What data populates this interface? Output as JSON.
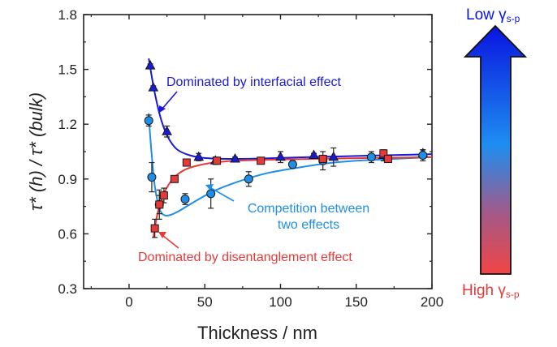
{
  "colors": {
    "interfacial": "#1a1ad6",
    "competition": "#1e8ee8",
    "disentanglement": "#e63a3a",
    "arrow_top": "#0a14e0",
    "arrow_bottom": "#f24545",
    "axis": "#222222"
  },
  "chart_data": {
    "type": "scatter",
    "title": "",
    "xlabel": "Thickness / nm",
    "ylabel": "τ* (h) / τ* (bulk)",
    "xlim": [
      -30,
      200
    ],
    "ylim": [
      0.3,
      1.8
    ],
    "xticks": [
      0,
      50,
      100,
      150,
      200
    ],
    "yticks": [
      0.3,
      0.6,
      0.9,
      1.2,
      1.5,
      1.8
    ],
    "xtick_labels": [
      "0",
      "50",
      "100",
      "150",
      "200"
    ],
    "ytick_labels": [
      "0.3",
      "0.6",
      "0.9",
      "1.2",
      "1.5",
      "1.8"
    ],
    "grid": false,
    "series": [
      {
        "key": "interfacial",
        "marker": "triangle",
        "x": [
          14,
          16,
          25,
          46,
          57,
          70,
          100,
          122,
          135,
          168,
          194
        ],
        "y": [
          1.52,
          1.4,
          1.16,
          1.02,
          1.0,
          1.01,
          1.02,
          1.03,
          1.02,
          1.03,
          1.04
        ],
        "err": [
          0.01,
          0.01,
          0.03,
          0.02,
          0.02,
          0.01,
          0.03,
          0.01,
          0.05,
          0.03,
          0.02
        ],
        "fit_x": [
          13,
          15,
          17,
          20,
          23,
          27,
          32,
          40,
          50,
          65,
          85,
          110,
          140,
          170,
          200
        ],
        "fit_y": [
          1.56,
          1.46,
          1.37,
          1.26,
          1.18,
          1.11,
          1.06,
          1.03,
          1.015,
          1.01,
          1.012,
          1.018,
          1.024,
          1.03,
          1.036
        ]
      },
      {
        "key": "competition",
        "marker": "circle",
        "x": [
          13,
          15,
          20,
          37,
          54,
          79,
          108,
          128,
          160,
          194
        ],
        "y": [
          1.22,
          0.91,
          0.76,
          0.79,
          0.82,
          0.9,
          0.98,
          1.0,
          1.02,
          1.03
        ],
        "err": [
          0.03,
          0.08,
          0.08,
          0.03,
          0.08,
          0.04,
          0.02,
          0.05,
          0.03,
          0.03
        ],
        "fit_x": [
          13,
          14,
          15.5,
          17,
          19,
          21,
          24,
          28,
          34,
          42,
          55,
          70,
          90,
          110,
          130,
          150,
          175,
          200
        ],
        "fit_y": [
          1.26,
          1.13,
          0.98,
          0.86,
          0.77,
          0.72,
          0.7,
          0.705,
          0.73,
          0.77,
          0.83,
          0.88,
          0.93,
          0.96,
          0.985,
          1.0,
          1.01,
          1.02
        ]
      },
      {
        "key": "disentanglement",
        "marker": "square",
        "x": [
          17,
          20,
          23,
          30,
          38,
          58,
          87,
          128,
          168,
          171
        ],
        "y": [
          0.63,
          0.76,
          0.81,
          0.9,
          0.99,
          1.0,
          1.0,
          1.01,
          1.04,
          1.01
        ],
        "err": [
          0.05,
          0.05,
          0.04,
          0.01,
          0.01,
          0.01,
          0.01,
          0.02,
          0.01,
          0.01
        ],
        "fit_x": [
          16,
          18,
          20,
          23,
          27,
          32,
          38,
          46,
          56,
          70,
          90,
          120,
          160,
          200
        ],
        "fit_y": [
          0.58,
          0.68,
          0.75,
          0.82,
          0.88,
          0.925,
          0.955,
          0.975,
          0.99,
          1.0,
          1.005,
          1.01,
          1.015,
          1.02
        ]
      }
    ],
    "annotations": [
      "Dominated by interfacial effect",
      "Competition between\ntwo effects",
      "Dominated by disentanglement effect"
    ],
    "colorbar": {
      "top_label": "Low γ",
      "top_sub": "s-p",
      "bottom_label": "High γ",
      "bottom_sub": "s-p"
    }
  }
}
